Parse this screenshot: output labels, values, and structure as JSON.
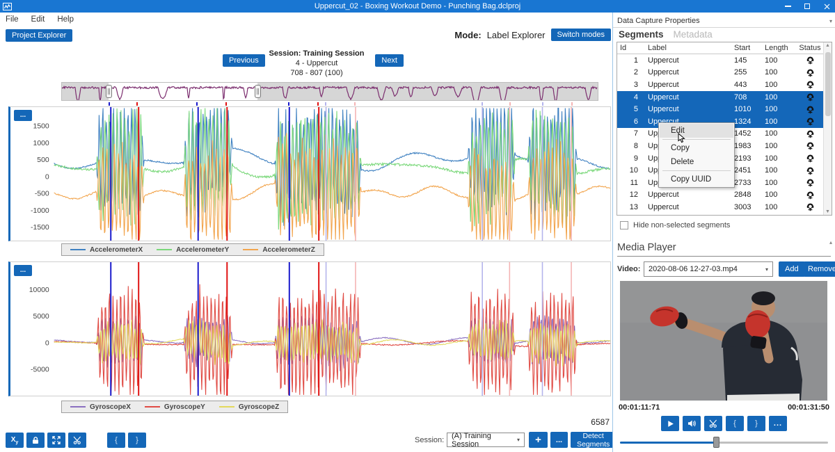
{
  "window": {
    "title": "Uppercut_02 - Boxing Workout Demo - Punching Bag.dclproj"
  },
  "menu": {
    "items": [
      "File",
      "Edit",
      "Help"
    ]
  },
  "topbar": {
    "project_explorer": "Project Explorer",
    "mode_label": "Mode:",
    "mode_value": "Label Explorer",
    "switch_modes": "Switch modes"
  },
  "session_nav": {
    "previous": "Previous",
    "next": "Next",
    "title": "Session: Training Session",
    "subtitle": "4 - Uppercut",
    "range": "708 - 807 (100)"
  },
  "colors": {
    "accent": "#1467b8",
    "titlebar": "#1976d2",
    "selected_row": "#1467b9",
    "marker_start": "#1a1acc",
    "marker_end": "#e01111",
    "marker_start_light": "#b4b4ec",
    "marker_end_light": "#f4b4b4",
    "overview_trace": "#7b2d6e"
  },
  "chart_data": [
    {
      "id": "accelerometer",
      "type": "line",
      "title": "",
      "xlabel": "",
      "ylabel": "",
      "grid": false,
      "legend_position": "bottom",
      "yticks": [
        1500,
        1000,
        500,
        0,
        -500,
        -1000,
        -1500
      ],
      "ylim": [
        -1900,
        2060
      ],
      "series": [
        {
          "name": "AccelerometerX",
          "color": "#3f81c1"
        },
        {
          "name": "AccelerometerY",
          "color": "#7bd87b"
        },
        {
          "name": "AccelerometerZ",
          "color": "#f2a54e"
        }
      ],
      "selected_segment_windows": [
        [
          0.102,
          0.152
        ],
        [
          0.259,
          0.311
        ],
        [
          0.423,
          0.476
        ]
      ],
      "other_segment_windows": [
        [
          0.489,
          0.542
        ],
        [
          0.77,
          0.819
        ],
        [
          0.878,
          0.93
        ]
      ],
      "note": "raw sensor waveform; calm baseline with full-scale oscillation bursts inside segment windows"
    },
    {
      "id": "gyroscope",
      "type": "line",
      "title": "",
      "xlabel": "",
      "ylabel": "",
      "grid": false,
      "legend_position": "bottom",
      "yticks": [
        10000,
        5000,
        0,
        -5000
      ],
      "ylim": [
        -10000,
        15200
      ],
      "series": [
        {
          "name": "GyroscopeX",
          "color": "#8a6fc0"
        },
        {
          "name": "GyroscopeY",
          "color": "#e04b44"
        },
        {
          "name": "GyroscopeZ",
          "color": "#e3d95c"
        }
      ],
      "selected_segment_windows": [
        [
          0.102,
          0.152
        ],
        [
          0.259,
          0.311
        ],
        [
          0.423,
          0.476
        ]
      ],
      "other_segment_windows": [
        [
          0.489,
          0.542
        ],
        [
          0.77,
          0.819
        ],
        [
          0.878,
          0.93
        ]
      ],
      "note": "raw sensor waveform; calm baseline near 0 with bursts inside segment windows"
    },
    {
      "id": "session-overview",
      "type": "line",
      "series": [
        {
          "name": "overview-trace",
          "color": "#7b2d6e"
        }
      ],
      "view_window": [
        0.087,
        0.365
      ],
      "note": "condensed full-session trace; shaded outside the current view window"
    }
  ],
  "bottom_toolbar": {
    "buttons": [
      {
        "name": "axes-toggle",
        "label": "Xy"
      },
      {
        "name": "lock",
        "label": ""
      },
      {
        "name": "fit-view",
        "label": ""
      },
      {
        "name": "cut",
        "label": ""
      },
      {
        "name": "open-brace",
        "label": "{"
      },
      {
        "name": "close-brace",
        "label": "}"
      }
    ]
  },
  "bottom_bar": {
    "count": "6587",
    "session_label": "Session:",
    "session_value": "(A) Training Session",
    "add_label": "+",
    "more_label": "...",
    "detect_label": "Detect Segments"
  },
  "right_panel": {
    "header": "Data Capture Properties",
    "tabs": [
      {
        "label": "Segments",
        "active": true
      },
      {
        "label": "Metadata",
        "active": false
      }
    ],
    "segments_table": {
      "columns": [
        "Id",
        "Label",
        "Start",
        "Length",
        "Status"
      ],
      "status_icon_name": "headset-person-icon",
      "selected_ids": [
        4,
        5,
        6
      ],
      "rows": [
        {
          "id": 1,
          "label": "Uppercut",
          "start": 145,
          "length": 100
        },
        {
          "id": 2,
          "label": "Uppercut",
          "start": 255,
          "length": 100
        },
        {
          "id": 3,
          "label": "Uppercut",
          "start": 443,
          "length": 100
        },
        {
          "id": 4,
          "label": "Uppercut",
          "start": 708,
          "length": 100
        },
        {
          "id": 5,
          "label": "Uppercut",
          "start": 1010,
          "length": 100
        },
        {
          "id": 6,
          "label": "Uppercut",
          "start": 1324,
          "length": 100
        },
        {
          "id": 7,
          "label": "Uppercut",
          "start": 1452,
          "length": 100
        },
        {
          "id": 8,
          "label": "Uppercut",
          "start": 1983,
          "length": 100
        },
        {
          "id": 9,
          "label": "Uppercut",
          "start": 2193,
          "length": 100
        },
        {
          "id": 10,
          "label": "Uppercut",
          "start": 2451,
          "length": 100
        },
        {
          "id": 11,
          "label": "Uppercut",
          "start": 2733,
          "length": 100
        },
        {
          "id": 12,
          "label": "Uppercut",
          "start": 2848,
          "length": 100
        },
        {
          "id": 13,
          "label": "Uppercut",
          "start": 3003,
          "length": 100
        }
      ]
    },
    "hide_checkbox_label": "Hide non-selected segments",
    "context_menu": {
      "items": [
        {
          "label": "Edit",
          "highlighted": true,
          "separator_after": true
        },
        {
          "label": "Copy",
          "highlighted": false,
          "separator_after": false
        },
        {
          "label": "Delete",
          "highlighted": false,
          "separator_after": true
        },
        {
          "label": "Copy UUID",
          "highlighted": false,
          "separator_after": false
        }
      ]
    },
    "media_player": {
      "title": "Media Player",
      "video_label": "Video:",
      "video_value": "2020-08-06 12-27-03.mp4",
      "add_label": "Add",
      "remove_label": "Remove",
      "time_current": "00:01:11:71",
      "time_total": "00:01:31:50",
      "slider_position": 0.46,
      "buttons": [
        {
          "name": "play"
        },
        {
          "name": "volume"
        },
        {
          "name": "cut"
        },
        {
          "name": "open-brace",
          "label": "{"
        },
        {
          "name": "close-brace",
          "label": "}"
        },
        {
          "name": "more",
          "label": "..."
        }
      ]
    }
  }
}
